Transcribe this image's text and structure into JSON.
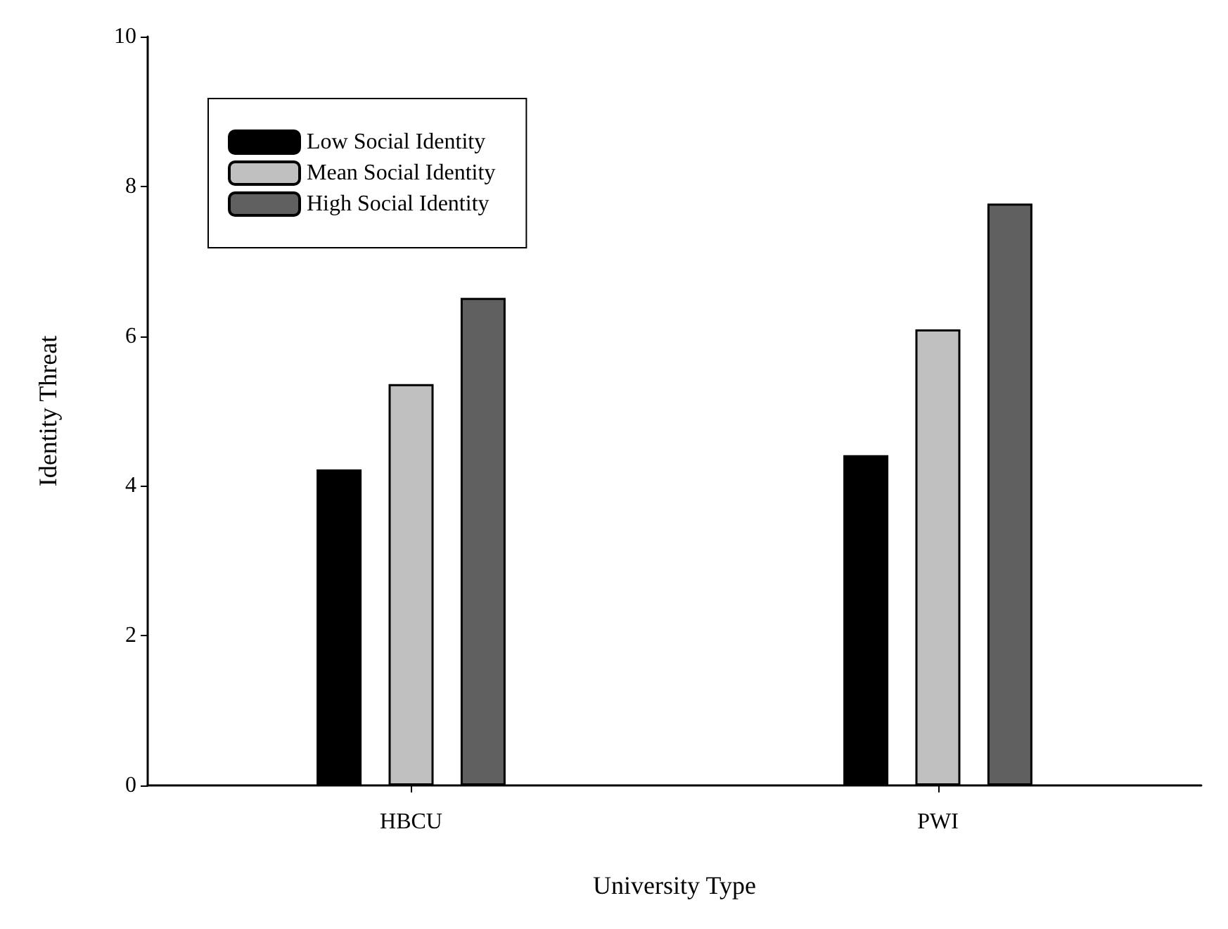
{
  "chart_data": {
    "type": "bar",
    "xlabel": "University Type",
    "ylabel": "Identity Threat",
    "categories": [
      "HBCU",
      "PWI"
    ],
    "series": [
      {
        "name": "Low Social Identity",
        "color": "#000000",
        "values": [
          4.22,
          4.41
        ]
      },
      {
        "name": "Mean Social Identity",
        "color": "#c0c0c0",
        "values": [
          5.36,
          6.09
        ]
      },
      {
        "name": "High Social Identity",
        "color": "#606060",
        "values": [
          6.51,
          7.77
        ]
      }
    ],
    "ylim": [
      0,
      10
    ],
    "yticks": [
      0,
      2,
      4,
      6,
      8,
      10
    ],
    "grid": false,
    "legend": "top left"
  }
}
